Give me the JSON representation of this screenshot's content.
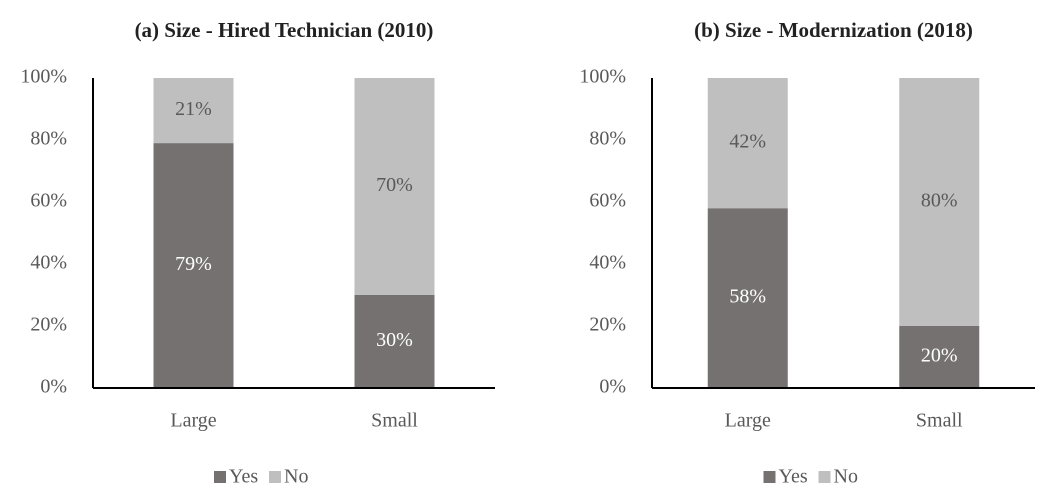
{
  "chart_data": [
    {
      "type": "stacked_bar",
      "title": "(a) Size - Hired Technician (2010)",
      "categories": [
        "Large",
        "Small"
      ],
      "series": [
        {
          "name": "Yes",
          "color": "#767171",
          "values": [
            79,
            30
          ],
          "value_labels": [
            "79%",
            "30%"
          ]
        },
        {
          "name": "No",
          "color": "#bfbfbf",
          "values": [
            21,
            70
          ],
          "value_labels": [
            "21%",
            "70%"
          ]
        }
      ],
      "ylim": [
        0,
        100
      ],
      "yticks": [
        {
          "value": 0,
          "label": "0%"
        },
        {
          "value": 20,
          "label": "20%"
        },
        {
          "value": 40,
          "label": "40%"
        },
        {
          "value": 60,
          "label": "60%"
        },
        {
          "value": 80,
          "label": "80%"
        },
        {
          "value": 100,
          "label": "100%"
        }
      ],
      "legend": "bottom"
    },
    {
      "type": "stacked_bar",
      "title": "(b) Size - Modernization (2018)",
      "categories": [
        "Large",
        "Small"
      ],
      "series": [
        {
          "name": "Yes",
          "color": "#767171",
          "values": [
            58,
            20
          ],
          "value_labels": [
            "58%",
            "20%"
          ]
        },
        {
          "name": "No",
          "color": "#bfbfbf",
          "values": [
            42,
            80
          ],
          "value_labels": [
            "42%",
            "80%"
          ]
        }
      ],
      "ylim": [
        0,
        100
      ],
      "yticks": [
        {
          "value": 0,
          "label": "0%"
        },
        {
          "value": 20,
          "label": "20%"
        },
        {
          "value": 40,
          "label": "40%"
        },
        {
          "value": 60,
          "label": "60%"
        },
        {
          "value": 80,
          "label": "80%"
        },
        {
          "value": 100,
          "label": "100%"
        }
      ],
      "legend": "bottom"
    }
  ]
}
